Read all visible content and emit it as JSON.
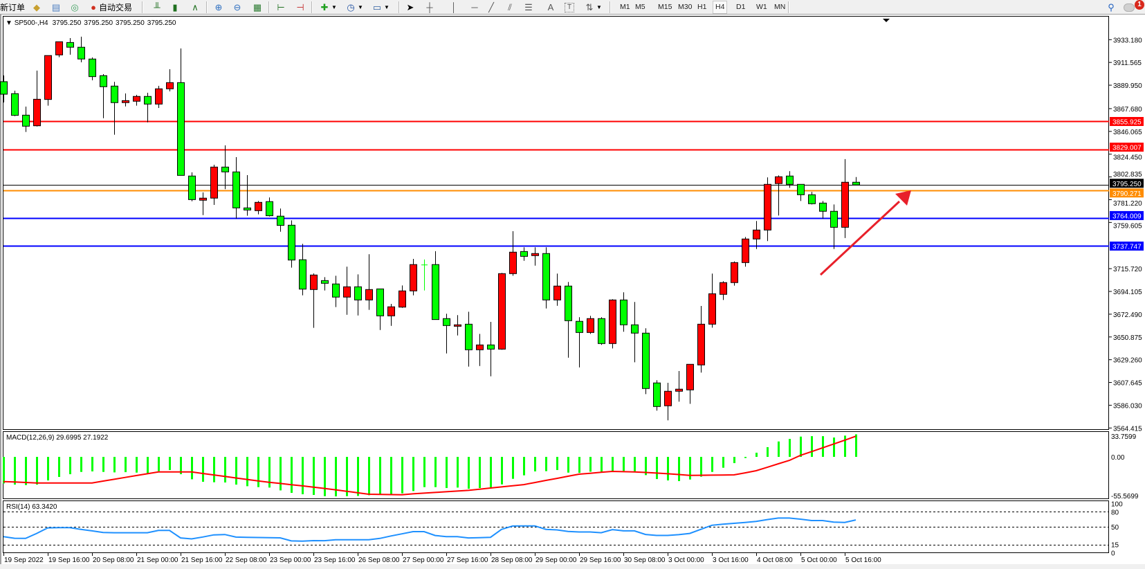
{
  "toolbar": {
    "new_order_label": "新订单",
    "auto_trading_label": "自动交易",
    "icons": [
      "gold-bars-icon",
      "market-watch-icon",
      "signals-icon",
      "auto-trading-icon",
      "bar-chart-icon",
      "candlestick-icon",
      "line-chart-icon",
      "zoom-in-icon",
      "zoom-out-icon",
      "tile-windows-icon",
      "chart-shift-icon",
      "autoscroll-icon",
      "indicators-icon",
      "periods-icon",
      "templates-icon",
      "cursor-icon",
      "crosshair-icon",
      "vertical-line-icon",
      "horizontal-line-icon",
      "trendline-icon",
      "fibonacci-icon",
      "fibonacci-fan-icon",
      "text-icon",
      "text-label-icon",
      "arrows-icon"
    ],
    "text_tool_label": "A",
    "timeframes": [
      "M1",
      "M5",
      "M15",
      "M30",
      "H1",
      "H4",
      "D1",
      "W1",
      "MN"
    ],
    "active_timeframe": "H4",
    "notification_count": "1"
  },
  "chart": {
    "symbol": "SP500-,H4",
    "ohlc_header": [
      "3795.250",
      "3795.250",
      "3795.250",
      "3795.250"
    ],
    "price_ticks": [
      "3933.180",
      "3911.565",
      "3889.950",
      "3867.680",
      "3846.065",
      "3824.450",
      "3802.835",
      "3781.220",
      "3759.605",
      "3715.720",
      "3694.105",
      "3672.490",
      "3650.875",
      "3629.260",
      "3607.645",
      "3586.030",
      "3564.415"
    ],
    "price_range": [
      3564.415,
      3933.18
    ],
    "levels": [
      {
        "price": 3855.925,
        "label": "3855.925",
        "color": "#ff0000"
      },
      {
        "price": 3829.007,
        "label": "3829.007",
        "color": "#ff0000"
      },
      {
        "price": 3790.271,
        "label": "3790.271",
        "color": "#ff8c00"
      },
      {
        "price": 3764.009,
        "label": "3764.009",
        "color": "#0000ff"
      },
      {
        "price": 3737.747,
        "label": "3737.747",
        "color": "#0000ff"
      }
    ],
    "bid": {
      "price": 3795.25,
      "label": "3795.250",
      "color": "#000000"
    },
    "up_color": "#ff0000",
    "down_color": "#00ff00",
    "date_labels": [
      "19 Sep 2022",
      "19 Sep 16:00",
      "20 Sep 08:00",
      "21 Sep 00:00",
      "21 Sep 16:00",
      "22 Sep 08:00",
      "23 Sep 00:00",
      "23 Sep 16:00",
      "26 Sep 08:00",
      "27 Sep 00:00",
      "27 Sep 16:00",
      "28 Sep 08:00",
      "29 Sep 00:00",
      "29 Sep 16:00",
      "30 Sep 08:00",
      "3 Oct 00:00",
      "3 Oct 16:00",
      "4 Oct 08:00",
      "5 Oct 00:00",
      "5 Oct 16:00"
    ],
    "arrow_color": "#e8202a"
  },
  "chart_data": {
    "type": "candlestick",
    "ohlc": [
      [
        3893.3,
        3899.2,
        3873.6,
        3881.4
      ],
      [
        3881.9,
        3884.7,
        3860.6,
        3861.3
      ],
      [
        3861.5,
        3869.6,
        3845.5,
        3851.0
      ],
      [
        3851.4,
        3903.8,
        3850.7,
        3876.6
      ],
      [
        3876.4,
        3918.1,
        3870.5,
        3918.1
      ],
      [
        3918.7,
        3931.2,
        3916.5,
        3931.2
      ],
      [
        3930.5,
        3934.7,
        3918.9,
        3926.0
      ],
      [
        3926.0,
        3936.0,
        3911.7,
        3914.8
      ],
      [
        3914.8,
        3916.3,
        3894.6,
        3898.1
      ],
      [
        3899.0,
        3900.5,
        3858.6,
        3888.5
      ],
      [
        3889.1,
        3893.1,
        3842.9,
        3873.4
      ],
      [
        3873.4,
        3882.1,
        3869.8,
        3875.3
      ],
      [
        3874.7,
        3880.8,
        3870.5,
        3879.3
      ],
      [
        3879.3,
        3882.8,
        3854.7,
        3872.0
      ],
      [
        3872.0,
        3889.3,
        3868.3,
        3886.5
      ],
      [
        3886.5,
        3905.1,
        3884.1,
        3892.4
      ],
      [
        3892.4,
        3924.8,
        3804.3,
        3804.3
      ],
      [
        3803.7,
        3807.2,
        3779.7,
        3781.3
      ],
      [
        3780.7,
        3788.1,
        3766.6,
        3782.7
      ],
      [
        3782.7,
        3814.4,
        3776.3,
        3812.2
      ],
      [
        3812.2,
        3832.8,
        3791.2,
        3807.6
      ],
      [
        3807.6,
        3821.6,
        3763.3,
        3773.4
      ],
      [
        3773.4,
        3804.5,
        3766.0,
        3771.4
      ],
      [
        3770.8,
        3780.0,
        3767.3,
        3778.7
      ],
      [
        3779.4,
        3783.3,
        3765.3,
        3766.0
      ],
      [
        3765.6,
        3772.8,
        3750.8,
        3756.8
      ],
      [
        3757.0,
        3761.6,
        3716.7,
        3723.9
      ],
      [
        3724.2,
        3739.3,
        3690.4,
        3696.3
      ],
      [
        3695.9,
        3711.2,
        3659.5,
        3709.7
      ],
      [
        3704.4,
        3707.7,
        3695.0,
        3701.8
      ],
      [
        3701.2,
        3709.0,
        3679.2,
        3688.7
      ],
      [
        3688.7,
        3717.6,
        3671.9,
        3698.5
      ],
      [
        3698.5,
        3710.3,
        3671.3,
        3686.0
      ],
      [
        3686.0,
        3729.4,
        3676.6,
        3695.9
      ],
      [
        3696.5,
        3696.5,
        3657.5,
        3670.9
      ],
      [
        3670.9,
        3682.3,
        3661.4,
        3679.5
      ],
      [
        3679.2,
        3699.8,
        3678.5,
        3694.6
      ],
      [
        3694.6,
        3725.0,
        3690.4,
        3719.6
      ],
      [
        3719.6,
        3724.4,
        3695.0,
        3719.6
      ],
      [
        3719.6,
        3732.3,
        3667.4,
        3667.4
      ],
      [
        3668.3,
        3672.9,
        3635.2,
        3661.7
      ],
      [
        3661.0,
        3671.6,
        3652.3,
        3662.4
      ],
      [
        3663.0,
        3674.8,
        3622.7,
        3638.7
      ],
      [
        3638.7,
        3653.8,
        3623.3,
        3643.3
      ],
      [
        3643.3,
        3665.2,
        3613.5,
        3639.3
      ],
      [
        3639.3,
        3711.7,
        3638.7,
        3711.0
      ],
      [
        3711.0,
        3751.3,
        3709.0,
        3731.4
      ],
      [
        3732.0,
        3736.0,
        3723.2,
        3727.4
      ],
      [
        3728.1,
        3736.0,
        3718.6,
        3730.1
      ],
      [
        3730.1,
        3736.0,
        3677.9,
        3686.0
      ],
      [
        3686.0,
        3711.0,
        3680.5,
        3699.2
      ],
      [
        3699.2,
        3703.1,
        3631.2,
        3666.3
      ],
      [
        3665.7,
        3669.6,
        3622.0,
        3655.1
      ],
      [
        3655.1,
        3670.9,
        3653.8,
        3668.3
      ],
      [
        3668.3,
        3669.6,
        3643.3,
        3644.6
      ],
      [
        3644.6,
        3686.7,
        3640.0,
        3686.0
      ],
      [
        3686.0,
        3693.3,
        3655.8,
        3662.4
      ],
      [
        3662.4,
        3684.1,
        3626.8,
        3654.5
      ],
      [
        3654.5,
        3659.1,
        3596.6,
        3601.9
      ],
      [
        3607.2,
        3609.8,
        3580.9,
        3584.8
      ],
      [
        3585.5,
        3607.3,
        3571.7,
        3599.3
      ],
      [
        3599.3,
        3618.5,
        3589.4,
        3601.3
      ],
      [
        3600.6,
        3624.9,
        3587.4,
        3624.9
      ],
      [
        3624.3,
        3680.3,
        3617.0,
        3663.0
      ],
      [
        3663.0,
        3711.0,
        3659.7,
        3691.9
      ],
      [
        3691.3,
        3703.8,
        3686.0,
        3702.5
      ],
      [
        3702.5,
        3722.6,
        3699.6,
        3721.5
      ],
      [
        3721.5,
        3745.8,
        3717.6,
        3743.9
      ],
      [
        3743.9,
        3761.0,
        3734.4,
        3752.4
      ],
      [
        3752.4,
        3802.4,
        3741.9,
        3795.8
      ],
      [
        3796.5,
        3804.3,
        3766.2,
        3803.0
      ],
      [
        3803.7,
        3808.3,
        3792.5,
        3795.8
      ],
      [
        3795.8,
        3795.8,
        3780.0,
        3785.9
      ],
      [
        3785.9,
        3788.6,
        3776.7,
        3777.4
      ],
      [
        3778.0,
        3780.0,
        3763.3,
        3770.2
      ],
      [
        3770.2,
        3776.7,
        3734.4,
        3755.0
      ],
      [
        3755.0,
        3819.7,
        3744.8,
        3797.8
      ],
      [
        3797.8,
        3802.7,
        3795.25,
        3795.25
      ]
    ],
    "macd": {
      "label": "MACD(12,26,9) 29.6995 27.1922",
      "ticks": [
        "33.7599",
        "0.00",
        "-55.5699"
      ],
      "range": [
        -55.5699,
        33.7599
      ],
      "main_color": "#00ff00",
      "signal_color": "#ff0000",
      "main": [
        -34.9,
        -36.5,
        -37.1,
        -36.5,
        -31.0,
        -26.4,
        -22.8,
        -19.8,
        -19.1,
        -19.8,
        -20.4,
        -20.1,
        -20.7,
        -21.6,
        -18.8,
        -17.3,
        -22.8,
        -29.5,
        -32.8,
        -33.4,
        -33.7,
        -36.5,
        -38.6,
        -39.8,
        -40.4,
        -44.1,
        -47.4,
        -49.2,
        -50.1,
        -51.7,
        -52.0,
        -51.7,
        -51.4,
        -50.5,
        -50.1,
        -49.5,
        -48.0,
        -45.0,
        -39.8,
        -39.8,
        -41.0,
        -40.4,
        -41.9,
        -41.0,
        -40.1,
        -36.2,
        -28.9,
        -24.3,
        -19.1,
        -18.8,
        -17.3,
        -20.7,
        -21.0,
        -19.5,
        -19.8,
        -18.8,
        -18.5,
        -19.1,
        -24.0,
        -29.2,
        -31.0,
        -31.9,
        -29.8,
        -26.1,
        -19.8,
        -14.3,
        -8.2,
        -1.5,
        5.5,
        12.8,
        20.3,
        23.7,
        26.7,
        27.3,
        27.3,
        25.5,
        28.0,
        29.6995
      ],
      "signal": [
        -32.5,
        -33.1,
        -33.7,
        -34.3,
        -34.3,
        -34.3,
        -34.3,
        -34.3,
        -34.3,
        -31.9,
        -29.5,
        -27.0,
        -24.6,
        -22.2,
        -19.8,
        -19.8,
        -19.8,
        -19.8,
        -21.8,
        -23.8,
        -25.8,
        -27.8,
        -29.7,
        -31.6,
        -33.4,
        -35.0,
        -36.6,
        -38.2,
        -39.8,
        -41.5,
        -43.4,
        -45.3,
        -47.3,
        -49.2,
        -49.4,
        -49.6,
        -49.8,
        -48.6,
        -47.7,
        -46.8,
        -45.9,
        -45.0,
        -44.1,
        -42.6,
        -41.0,
        -39.5,
        -38.0,
        -36.5,
        -33.8,
        -31.0,
        -28.3,
        -25.5,
        -22.8,
        -21.6,
        -20.3,
        -19.1,
        -19.5,
        -19.8,
        -20.5,
        -21.3,
        -22.2,
        -23.2,
        -24.3,
        -24.2,
        -24.0,
        -23.9,
        -23.7,
        -21.0,
        -18.2,
        -13.7,
        -9.1,
        -4.6,
        2.0,
        7.0,
        12.0,
        17.0,
        22.0,
        27.1922
      ]
    },
    "rsi": {
      "label": "RSI(14) 63.3420",
      "ticks": [
        "100",
        "80",
        "50",
        "15",
        "0"
      ],
      "levels": [
        80,
        50,
        15
      ],
      "range": [
        0,
        100
      ],
      "color": "#1e90ff",
      "values": [
        30.8,
        27.5,
        27.3,
        37,
        47.8,
        48.3,
        48.3,
        45,
        42.0,
        38.8,
        38.4,
        38.4,
        38.4,
        38.4,
        42.9,
        42.9,
        28.2,
        26.4,
        30,
        34.2,
        34.9,
        29.9,
        29.5,
        29.0,
        28.6,
        28.4,
        22.5,
        22.0,
        23,
        22.8,
        24.6,
        24.6,
        24.6,
        24.6,
        27.3,
        32,
        36.2,
        40.6,
        40.6,
        33,
        30.8,
        30.8,
        28.2,
        28.8,
        29.5,
        45,
        51.5,
        51.8,
        51.8,
        45,
        43.9,
        41,
        39.8,
        39.8,
        38.4,
        44.5,
        42.0,
        42.0,
        35,
        33.1,
        33.1,
        34.6,
        37,
        45,
        53,
        55,
        56.8,
        58.5,
        60.5,
        64,
        67,
        67,
        64.8,
        62.1,
        62.1,
        59.0,
        58.5,
        63.342
      ]
    }
  }
}
